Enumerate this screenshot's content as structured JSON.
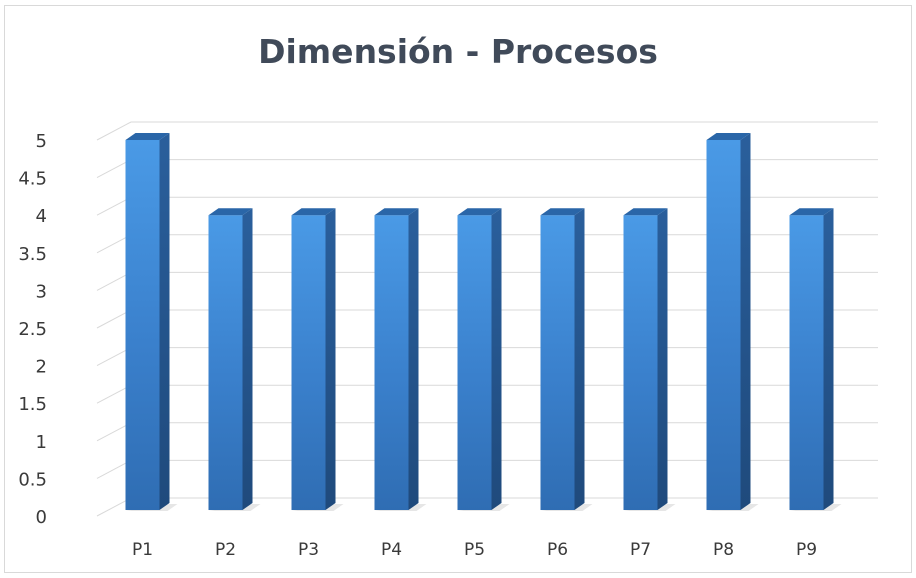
{
  "chart_data": {
    "type": "bar",
    "title": "Dimensión - Procesos",
    "xlabel": "",
    "ylabel": "",
    "categories": [
      "P1",
      "P2",
      "P3",
      "P4",
      "P5",
      "P6",
      "P7",
      "P8",
      "P9"
    ],
    "values": [
      5,
      4,
      4,
      4,
      4,
      4,
      4,
      5,
      4
    ],
    "ylim": [
      0,
      5
    ],
    "yticks": [
      "0",
      "0.5",
      "1",
      "1.5",
      "2",
      "2.5",
      "3",
      "3.5",
      "4",
      "4.5",
      "5"
    ],
    "grid": true,
    "legend": "none",
    "bar_color": "#3b82cf",
    "bar_side_color": "#22538c",
    "bar_top_color": "#2a66a8"
  }
}
